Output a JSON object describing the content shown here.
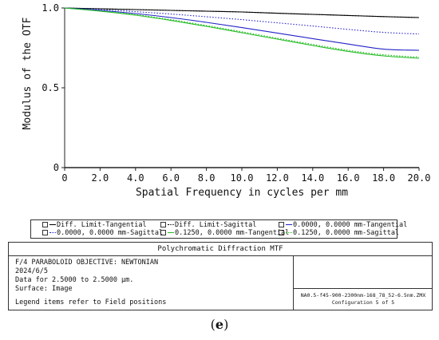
{
  "chart_data": {
    "type": "line",
    "xlabel": "Spatial Frequency in cycles per mm",
    "ylabel": "Modulus of the OTF",
    "xlim": [
      0,
      20
    ],
    "ylim": [
      0,
      1
    ],
    "xticks": [
      "0",
      "2.0",
      "4.0",
      "6.0",
      "8.0",
      "10.0",
      "12.0",
      "14.0",
      "16.0",
      "18.0",
      "20.0"
    ],
    "yticks": [
      "0",
      "0.5",
      "1.0"
    ],
    "grid": false,
    "x": [
      0,
      2,
      4,
      6,
      8,
      10,
      12,
      14,
      16,
      18,
      20
    ],
    "series": [
      {
        "name": "Diff. Limit-Tangential",
        "color": "#000000",
        "dash": "solid",
        "values": [
          1.0,
          0.995,
          0.99,
          0.985,
          0.98,
          0.975,
          0.967,
          0.96,
          0.953,
          0.946,
          0.94
        ]
      },
      {
        "name": "Diff. Limit-Sagittal",
        "color": "#000000",
        "dash": "dotted",
        "values": [
          1.0,
          0.995,
          0.99,
          0.985,
          0.98,
          0.975,
          0.967,
          0.96,
          0.953,
          0.946,
          0.94
        ]
      },
      {
        "name": "0.0000, 0.0000 mm-Tangential",
        "color": "#2323c8",
        "dash": "solid",
        "values": [
          1.0,
          0.985,
          0.965,
          0.94,
          0.91,
          0.877,
          0.843,
          0.808,
          0.774,
          0.742,
          0.735
        ]
      },
      {
        "name": "0.0000, 0.0000 mm-Sagittal",
        "color": "#2323c8",
        "dash": "dotted",
        "values": [
          1.0,
          0.99,
          0.977,
          0.962,
          0.945,
          0.927,
          0.907,
          0.887,
          0.866,
          0.847,
          0.837
        ]
      },
      {
        "name": "0.1250, 0.0000 mm-Tangential",
        "color": "#22bb22",
        "dash": "solid",
        "values": [
          1.0,
          0.98,
          0.955,
          0.922,
          0.885,
          0.845,
          0.805,
          0.765,
          0.728,
          0.7,
          0.685
        ]
      },
      {
        "name": "0.1250, 0.0000 mm-Sagittal",
        "color": "#22bb22",
        "dash": "dotted",
        "values": [
          1.0,
          0.982,
          0.958,
          0.927,
          0.89,
          0.851,
          0.811,
          0.772,
          0.735,
          0.707,
          0.692
        ]
      }
    ]
  },
  "legend": {
    "items": [
      "Diff. Limit-Tangential",
      "Diff. Limit-Sagittal",
      "0.0000, 0.0000 mm-Tangential",
      "0.0000, 0.0000 mm-Sagittal",
      "0.1250, 0.0000 mm-Tangential",
      "0.1250, 0.0000 mm-Sagittal"
    ]
  },
  "info": {
    "title": "Polychromatic Diffraction MTF",
    "line1": "F/4 PARABOLOID OBJECTIVE: NEWTONIAN",
    "line2": "2024/6/5",
    "line3": "Data for 2.5000 to 2.5000 µm.",
    "line4": "Surface: Image",
    "line5": "Legend items refer to Field positions",
    "file": "NA0.5-f45-900-2300nm-168_78_52-6.5nm.ZMX",
    "config": "Configuration 5 of 5"
  },
  "caption": {
    "open": "(",
    "letter": "e",
    "close": ")"
  }
}
